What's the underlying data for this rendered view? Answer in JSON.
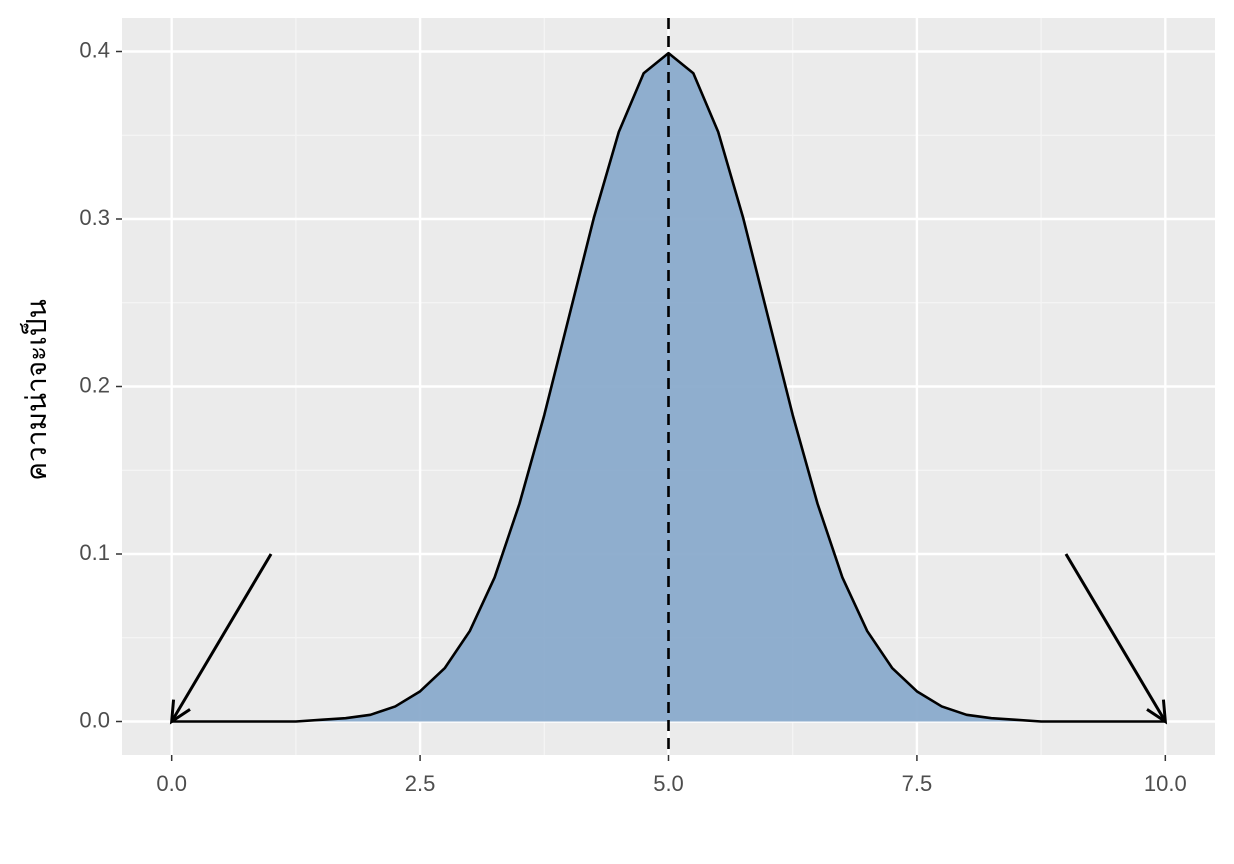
{
  "chart_data": {
    "type": "area",
    "ylabel": "ความน่าจะเป็น",
    "x": [
      0,
      0.25,
      0.5,
      0.75,
      1,
      1.25,
      1.5,
      1.75,
      2,
      2.25,
      2.5,
      2.75,
      3,
      3.25,
      3.5,
      3.75,
      4,
      4.25,
      4.5,
      4.75,
      5,
      5.25,
      5.5,
      5.75,
      6,
      6.25,
      6.5,
      6.75,
      7,
      7.25,
      7.5,
      7.75,
      8,
      8.25,
      8.5,
      8.75,
      9,
      9.25,
      9.5,
      9.75,
      10
    ],
    "values": [
      0,
      0,
      0,
      0,
      0,
      0,
      0.001,
      0.002,
      0.004,
      0.009,
      0.018,
      0.032,
      0.054,
      0.086,
      0.13,
      0.183,
      0.242,
      0.301,
      0.352,
      0.387,
      0.399,
      0.387,
      0.352,
      0.301,
      0.242,
      0.183,
      0.13,
      0.086,
      0.054,
      0.032,
      0.018,
      0.009,
      0.004,
      0.002,
      0.001,
      0,
      0,
      0,
      0,
      0,
      0
    ],
    "color": "#8aabcc",
    "vline": 5,
    "arrows": [
      {
        "x": [
          1,
          0
        ],
        "y": [
          0.1,
          0
        ]
      },
      {
        "x": [
          9,
          10
        ],
        "y": [
          0.1,
          0
        ]
      }
    ],
    "xlim": [
      -0.5,
      10.5
    ],
    "xticks": [
      {
        "value": 0,
        "label": "0.0"
      },
      2.5,
      {
        "value": 5,
        "label": "5.0"
      },
      7.5,
      {
        "value": 10,
        "label": "10.0"
      }
    ],
    "ylim": [
      -0.02,
      0.42
    ],
    "yticks": [
      {
        "value": 0,
        "label": "0.0"
      },
      0.1,
      0.2,
      0.3,
      0.4
    ],
    "grid": true
  }
}
